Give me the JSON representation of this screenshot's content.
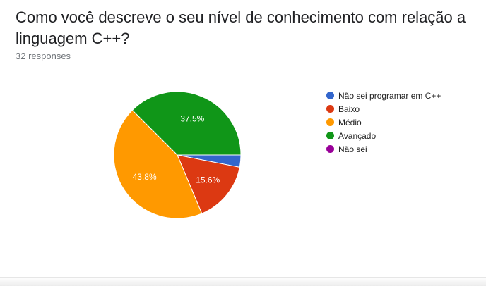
{
  "question": {
    "title": "Como você descreve o seu nível de conhecimento com relação a linguagem C++?",
    "responses": "32 responses"
  },
  "chart_data": {
    "type": "pie",
    "slices": [
      {
        "label": "Não sei programar em C++",
        "value": 3.1,
        "display": "",
        "color": "#3366cc"
      },
      {
        "label": "Baixo",
        "value": 15.6,
        "display": "15.6%",
        "color": "#dc3912"
      },
      {
        "label": "Médio",
        "value": 43.8,
        "display": "43.8%",
        "color": "#ff9900"
      },
      {
        "label": "Avançado",
        "value": 37.5,
        "display": "37.5%",
        "color": "#109618"
      },
      {
        "label": "Não sei",
        "value": 0,
        "display": "",
        "color": "#990099"
      }
    ],
    "legend_position": "right"
  }
}
